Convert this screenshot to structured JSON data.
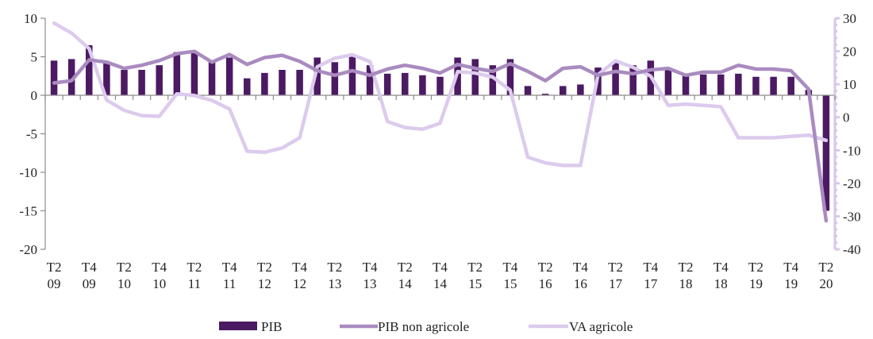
{
  "chart_data": {
    "type": "bar-line-combo",
    "title": "",
    "xlabel": "",
    "ylabel": "",
    "ylim_left": [
      -20,
      10
    ],
    "ylim_right": [
      -40,
      30
    ],
    "yticks_left": [
      "10",
      "5",
      "0",
      "-5",
      "-10",
      "-15",
      "-20"
    ],
    "yticks_right": [
      "30",
      "20",
      "10",
      "0",
      "-10",
      "-20",
      "-30",
      "-40"
    ],
    "x_tick_labels": [
      {
        "quarter": "T2",
        "year": "09"
      },
      {
        "quarter": "T4",
        "year": "09"
      },
      {
        "quarter": "T2",
        "year": "10"
      },
      {
        "quarter": "T4",
        "year": "10"
      },
      {
        "quarter": "T2",
        "year": "11"
      },
      {
        "quarter": "T4",
        "year": "11"
      },
      {
        "quarter": "T2",
        "year": "12"
      },
      {
        "quarter": "T4",
        "year": "12"
      },
      {
        "quarter": "T2",
        "year": "13"
      },
      {
        "quarter": "T4",
        "year": "13"
      },
      {
        "quarter": "T2",
        "year": "14"
      },
      {
        "quarter": "T4",
        "year": "14"
      },
      {
        "quarter": "T2",
        "year": "15"
      },
      {
        "quarter": "T4",
        "year": "15"
      },
      {
        "quarter": "T2",
        "year": "16"
      },
      {
        "quarter": "T4",
        "year": "16"
      },
      {
        "quarter": "T2",
        "year": "17"
      },
      {
        "quarter": "T4",
        "year": "17"
      },
      {
        "quarter": "T2",
        "year": "18"
      },
      {
        "quarter": "T4",
        "year": "18"
      },
      {
        "quarter": "T2",
        "year": "19"
      },
      {
        "quarter": "T4",
        "year": "19"
      },
      {
        "quarter": "T2",
        "year": "20"
      }
    ],
    "categories": [
      "T2-09",
      "T3-09",
      "T4-09",
      "T1-10",
      "T2-10",
      "T3-10",
      "T4-10",
      "T1-11",
      "T2-11",
      "T3-11",
      "T4-11",
      "T1-12",
      "T2-12",
      "T3-12",
      "T4-12",
      "T1-13",
      "T2-13",
      "T3-13",
      "T4-13",
      "T1-14",
      "T2-14",
      "T3-14",
      "T4-14",
      "T1-15",
      "T2-15",
      "T3-15",
      "T4-15",
      "T1-16",
      "T2-16",
      "T3-16",
      "T4-16",
      "T1-17",
      "T2-17",
      "T3-17",
      "T4-17",
      "T1-18",
      "T2-18",
      "T3-18",
      "T4-18",
      "T1-19",
      "T2-19",
      "T3-19",
      "T4-19",
      "T1-20",
      "T2-20"
    ],
    "series": [
      {
        "name": "PIB",
        "kind": "bar",
        "axis": "left",
        "color": "#4b1a63",
        "values": [
          4.5,
          4.7,
          6.5,
          4.2,
          3.3,
          3.3,
          3.9,
          5.6,
          5.5,
          4.4,
          4.9,
          2.2,
          2.9,
          3.3,
          3.3,
          4.9,
          4.3,
          5.0,
          3.9,
          2.8,
          2.9,
          2.6,
          2.4,
          4.9,
          4.7,
          3.9,
          4.7,
          1.2,
          0.2,
          1.2,
          1.4,
          3.6,
          4.2,
          3.9,
          4.5,
          3.3,
          2.5,
          2.7,
          2.7,
          2.8,
          2.4,
          2.4,
          2.4,
          0.7,
          -15.0
        ]
      },
      {
        "name": "PIB non agricole",
        "kind": "line",
        "axis": "left",
        "color": "#a98bc0",
        "values": [
          1.6,
          1.9,
          4.6,
          4.3,
          3.5,
          3.9,
          4.5,
          5.4,
          5.7,
          4.3,
          5.3,
          4.0,
          4.9,
          5.2,
          4.4,
          3.2,
          2.6,
          3.2,
          2.6,
          3.4,
          3.9,
          3.5,
          2.9,
          4.0,
          3.5,
          3.1,
          4.1,
          3.1,
          1.9,
          3.5,
          3.7,
          2.6,
          3.1,
          2.8,
          3.3,
          3.5,
          2.6,
          3.0,
          3.0,
          3.9,
          3.4,
          3.4,
          3.2,
          0.8,
          -16.3
        ]
      },
      {
        "name": "VA agricole",
        "kind": "line",
        "axis": "right",
        "color": "#dccbed",
        "values": [
          28.5,
          25.5,
          20.8,
          5.2,
          2.1,
          0.5,
          0.3,
          7.1,
          6.6,
          5.1,
          2.5,
          -10.3,
          -10.6,
          -9.3,
          -6.2,
          15.3,
          17.9,
          18.9,
          16.9,
          -1.3,
          -3.1,
          -3.6,
          -1.8,
          13.8,
          13.4,
          12.2,
          8.2,
          -12.1,
          -13.8,
          -14.6,
          -14.6,
          12.9,
          17.1,
          15.1,
          12.5,
          3.6,
          4.0,
          3.6,
          3.2,
          -6.2,
          -6.2,
          -6.2,
          -5.8,
          -5.4,
          -7.0
        ]
      }
    ],
    "legend": {
      "position": "bottom",
      "entries": [
        {
          "label": "PIB",
          "marker": "bar"
        },
        {
          "label": "PIB non agricole",
          "marker": "line"
        },
        {
          "label": "VA agricole",
          "marker": "line"
        }
      ]
    },
    "grid": false
  }
}
